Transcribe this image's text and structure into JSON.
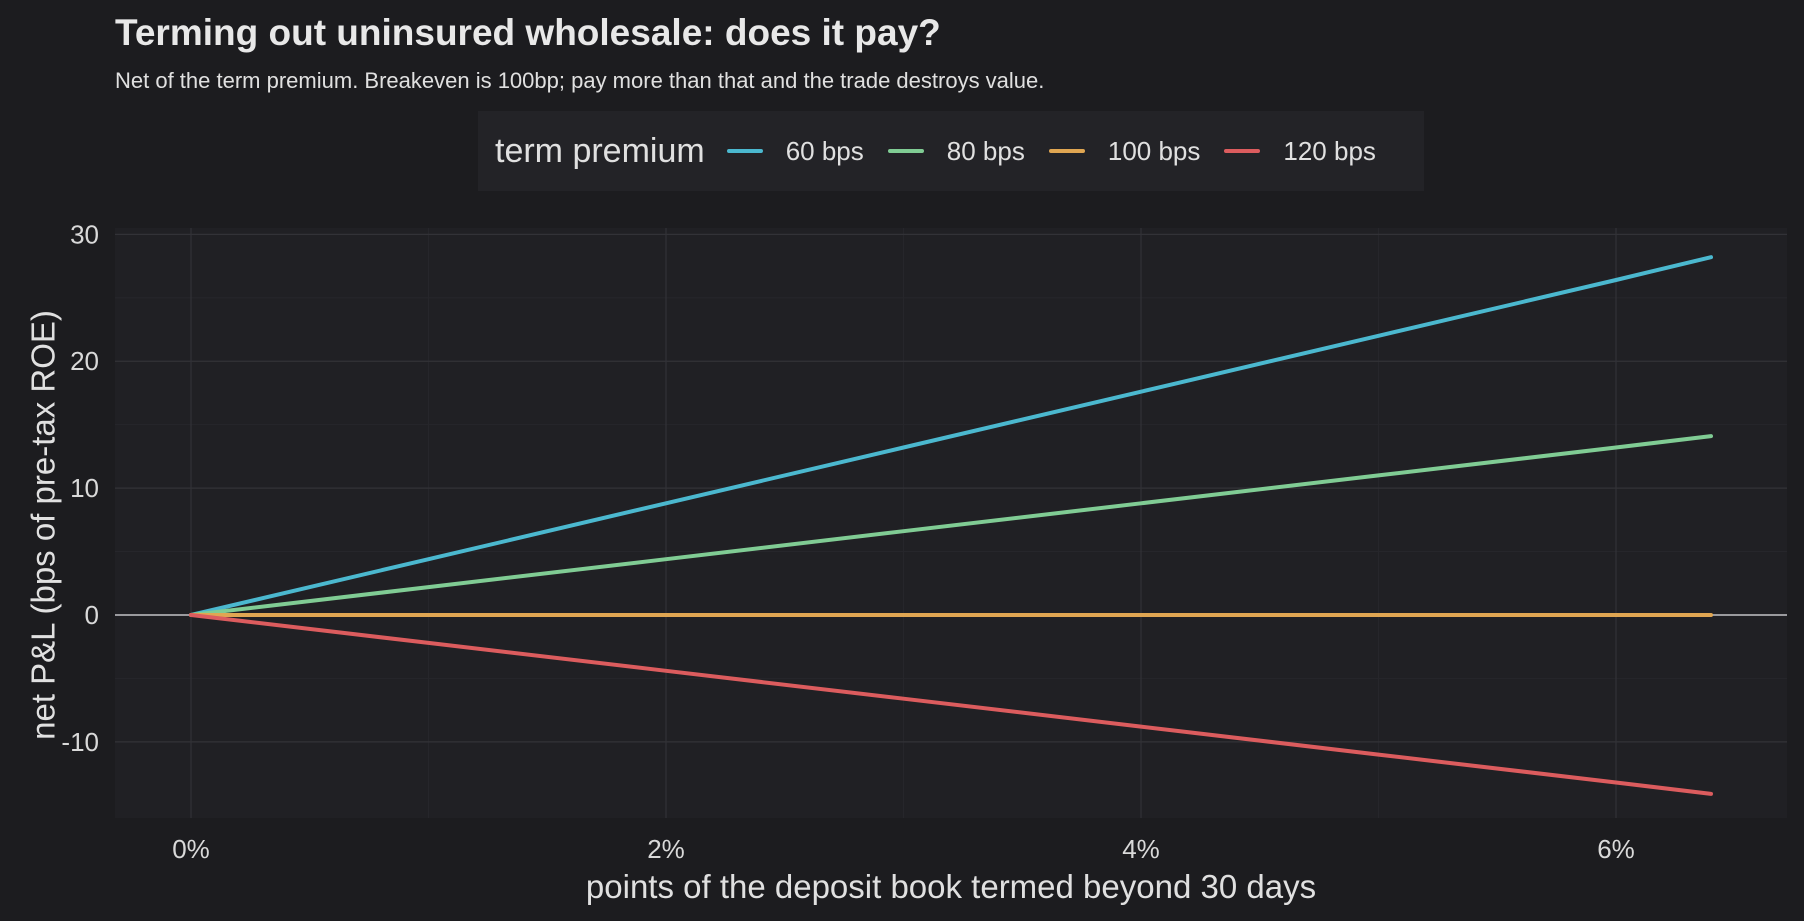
{
  "chart_data": {
    "type": "line",
    "title": "Terming out uninsured wholesale: does it pay?",
    "subtitle": "Net of the term premium. Breakeven is 100bp; pay more than that and the trade destroys value.",
    "xlabel": "points of the deposit book termed beyond 30 days",
    "ylabel": "net P&L (bps of pre-tax ROE)",
    "x_unit": "percent",
    "xlim": [
      -0.32,
      6.72
    ],
    "ylim": [
      -16,
      30.5
    ],
    "x_ticks": [
      0,
      2,
      4,
      6
    ],
    "x_tick_labels": [
      "0%",
      "2%",
      "4%",
      "6%"
    ],
    "y_ticks": [
      -10,
      0,
      10,
      20,
      30
    ],
    "y_tick_labels": [
      "-10",
      "0",
      "10",
      "20",
      "30"
    ],
    "grid": true,
    "zero_line": true,
    "legend": {
      "title": "term premium",
      "position": "top"
    },
    "series": [
      {
        "name": "60 bps",
        "color": "#4bb8cf",
        "x": [
          0,
          1,
          2,
          3,
          4,
          5,
          6,
          6.4
        ],
        "y": [
          0,
          4.4,
          8.8,
          13.2,
          17.6,
          22.0,
          26.4,
          28.2
        ]
      },
      {
        "name": "80 bps",
        "color": "#80cc94",
        "x": [
          0,
          1,
          2,
          3,
          4,
          5,
          6,
          6.4
        ],
        "y": [
          0,
          2.2,
          4.4,
          6.6,
          8.8,
          11.0,
          13.2,
          14.1
        ]
      },
      {
        "name": "100 bps",
        "color": "#e0a652",
        "x": [
          0,
          6.4
        ],
        "y": [
          0,
          0
        ]
      },
      {
        "name": "120 bps",
        "color": "#dc5c5e",
        "x": [
          0,
          1,
          2,
          3,
          4,
          5,
          6,
          6.4
        ],
        "y": [
          0,
          -2.2,
          -4.4,
          -6.6,
          -8.8,
          -11.0,
          -13.2,
          -14.1
        ]
      }
    ]
  }
}
